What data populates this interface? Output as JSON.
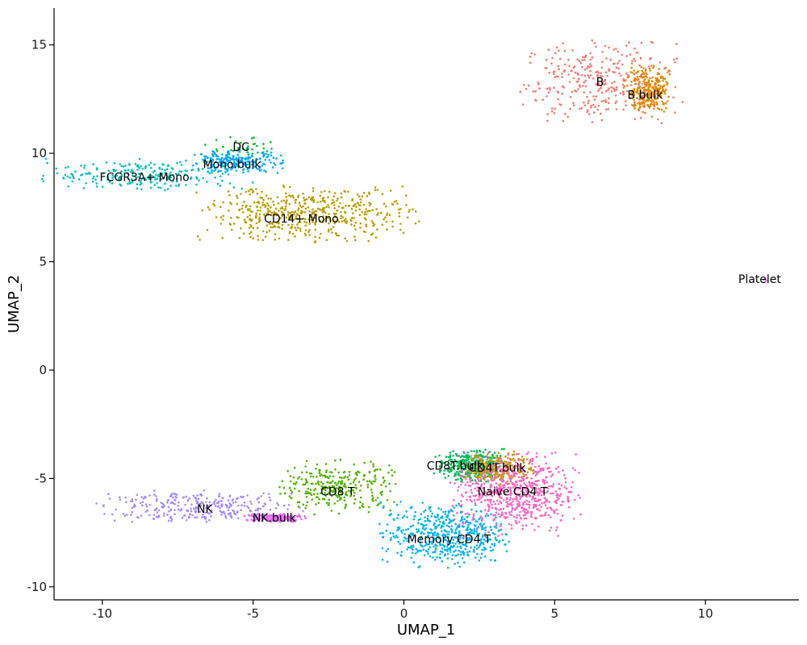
{
  "chart_data": {
    "type": "scatter",
    "title": "",
    "xlabel": "UMAP_1",
    "ylabel": "UMAP_2",
    "xlim": [
      -11.6,
      13.1
    ],
    "ylim": [
      -10.6,
      16.7
    ],
    "xticks": [
      -10,
      -5,
      0,
      5,
      10
    ],
    "yticks": [
      -10,
      -5,
      0,
      5,
      10,
      15
    ],
    "grid": false,
    "legend": "none",
    "point_size": 1.3,
    "series": [
      {
        "name": "B",
        "color": "#F8766D",
        "center": [
          6.5,
          13.3
        ],
        "spread": [
          1.25,
          0.9
        ],
        "count": 320,
        "label_at": [
          6.5,
          13.3
        ]
      },
      {
        "name": "B.bulk",
        "color": "#E58700",
        "center": [
          8.1,
          12.9
        ],
        "spread": [
          0.38,
          0.55
        ],
        "count": 260,
        "label_at": [
          8.0,
          12.7
        ]
      },
      {
        "name": "DC",
        "color": "#00BA38",
        "center": [
          -5.3,
          10.2
        ],
        "spread": [
          0.6,
          0.25
        ],
        "count": 35,
        "label_at": [
          -5.4,
          10.3
        ]
      },
      {
        "name": "Mono.bulk",
        "color": "#00A9FF",
        "center": [
          -5.6,
          9.6
        ],
        "spread": [
          0.75,
          0.25
        ],
        "count": 220,
        "label_at": [
          -5.7,
          9.5
        ]
      },
      {
        "name": "FCGR3A+ Mono",
        "color": "#00C0B8",
        "center": [
          -8.5,
          9.0
        ],
        "spread": [
          1.6,
          0.35
        ],
        "count": 240,
        "label_at": [
          -8.6,
          8.9
        ]
      },
      {
        "name": "CD14+ Mono",
        "color": "#B79F00",
        "center": [
          -3.2,
          7.2
        ],
        "spread": [
          1.7,
          0.6
        ],
        "count": 520,
        "label_at": [
          -3.4,
          7.0
        ]
      },
      {
        "name": "Platelet",
        "color": "#E76BF3",
        "center": [
          12.0,
          4.2
        ],
        "spread": [
          0.04,
          0.04
        ],
        "count": 3,
        "label_at": [
          11.8,
          4.2
        ]
      },
      {
        "name": "NK",
        "color": "#A58AFF",
        "center": [
          -6.8,
          -6.3
        ],
        "spread": [
          1.6,
          0.35
        ],
        "count": 300,
        "label_at": [
          -6.6,
          -6.4
        ]
      },
      {
        "name": "NK.bulk",
        "color": "#E76BF3",
        "center": [
          -4.3,
          -6.8
        ],
        "spread": [
          0.5,
          0.1
        ],
        "count": 180,
        "label_at": [
          -4.3,
          -6.8
        ]
      },
      {
        "name": "CD8 T",
        "color": "#53B400",
        "center": [
          -2.2,
          -5.4
        ],
        "spread": [
          0.9,
          0.6
        ],
        "count": 300,
        "label_at": [
          -2.2,
          -5.6
        ]
      },
      {
        "name": "CD8T.bulk",
        "color": "#00BC56",
        "center": [
          2.2,
          -4.4
        ],
        "spread": [
          0.55,
          0.35
        ],
        "count": 350,
        "label_at": [
          1.7,
          -4.4
        ]
      },
      {
        "name": "CD4T.bulk",
        "color": "#C49A00",
        "center": [
          3.2,
          -4.5
        ],
        "spread": [
          0.55,
          0.35
        ],
        "count": 220,
        "label_at": [
          3.1,
          -4.5
        ]
      },
      {
        "name": "Naive CD4 T",
        "color": "#FF61C3",
        "center": [
          3.7,
          -5.7
        ],
        "spread": [
          1.0,
          0.9
        ],
        "count": 650,
        "label_at": [
          3.6,
          -5.6
        ]
      },
      {
        "name": "Memory CD4 T",
        "color": "#00B4F0",
        "center": [
          1.3,
          -7.6
        ],
        "spread": [
          1.0,
          0.7
        ],
        "count": 520,
        "label_at": [
          1.5,
          -7.8
        ]
      }
    ]
  }
}
